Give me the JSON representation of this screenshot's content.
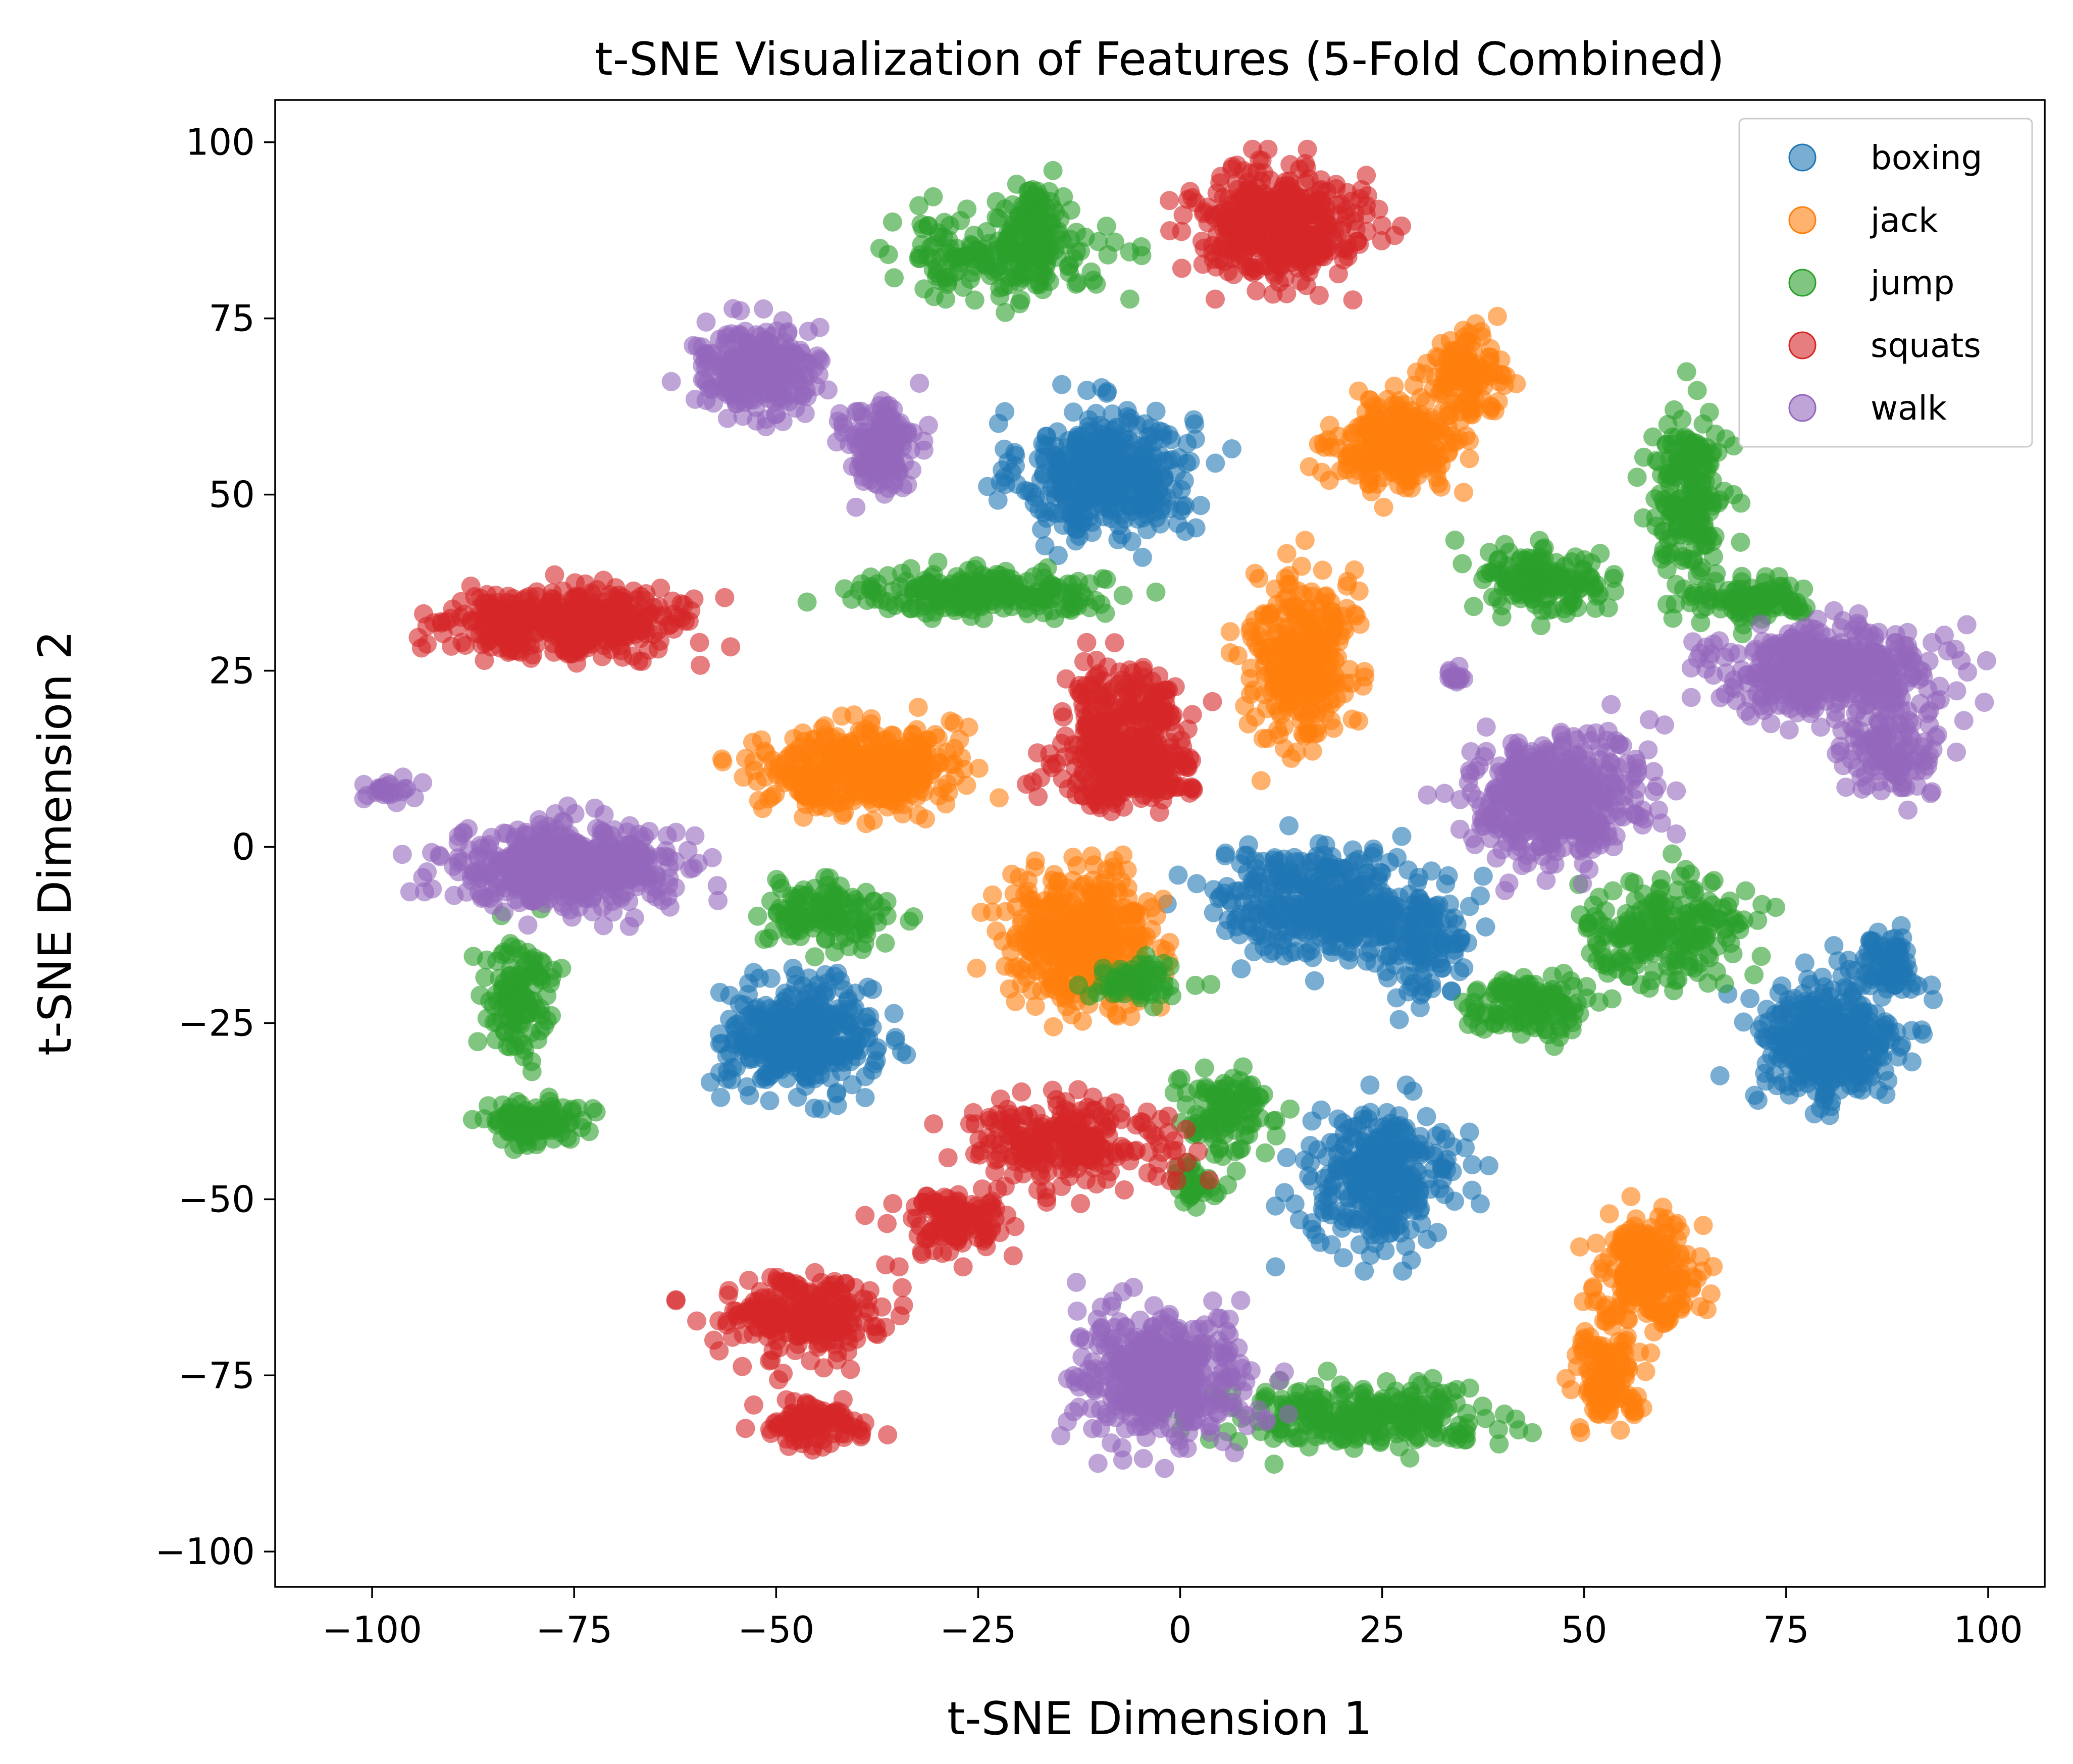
{
  "chart_data": {
    "type": "scatter",
    "title": "t-SNE Visualization of Features (5-Fold Combined)",
    "xlabel": "t-SNE Dimension 1",
    "ylabel": "t-SNE Dimension 2",
    "xlim": [
      -112,
      107
    ],
    "ylim": [
      -105,
      106
    ],
    "xticks": [
      -100,
      -75,
      -50,
      -25,
      0,
      25,
      50,
      75,
      100
    ],
    "yticks": [
      -100,
      -75,
      -50,
      -25,
      0,
      25,
      50,
      75,
      100
    ],
    "xtick_labels": [
      "−100",
      "−75",
      "−50",
      "−25",
      "0",
      "25",
      "50",
      "75",
      "100"
    ],
    "ytick_labels": [
      "−100",
      "−75",
      "−50",
      "−25",
      "0",
      "25",
      "50",
      "75",
      "100"
    ],
    "legend_position": "top-right",
    "point_alpha": 0.6,
    "series": [
      {
        "name": "boxing",
        "color": "#1f77b4",
        "clusters": [
          {
            "cx": -9,
            "cy": 53,
            "sx": 7,
            "sy": 6,
            "n": 420
          },
          {
            "cx": 18,
            "cy": -8,
            "sx": 9,
            "sy": 5,
            "n": 380
          },
          {
            "cx": 30,
            "cy": -14,
            "sx": 4,
            "sy": 5,
            "n": 110
          },
          {
            "cx": -47,
            "cy": -27,
            "sx": 6,
            "sy": 5,
            "n": 380
          },
          {
            "cx": 25,
            "cy": -47,
            "sx": 6,
            "sy": 6,
            "n": 320
          },
          {
            "cx": 80,
            "cy": -28,
            "sx": 6,
            "sy": 6,
            "n": 360
          },
          {
            "cx": 87,
            "cy": -17,
            "sx": 3,
            "sy": 3,
            "n": 80
          }
        ]
      },
      {
        "name": "jack",
        "color": "#ff7f0e",
        "clusters": [
          {
            "cx": 27,
            "cy": 57,
            "sx": 5,
            "sy": 4,
            "n": 260
          },
          {
            "cx": 35,
            "cy": 67,
            "sx": 3,
            "sy": 4,
            "n": 130
          },
          {
            "cx": 15,
            "cy": 27,
            "sx": 4,
            "sy": 8,
            "n": 340
          },
          {
            "cx": -40,
            "cy": 11,
            "sx": 8,
            "sy": 4,
            "n": 380
          },
          {
            "cx": -12,
            "cy": -13,
            "sx": 6,
            "sy": 6,
            "n": 420
          },
          {
            "cx": 58,
            "cy": -60,
            "sx": 4,
            "sy": 5,
            "n": 240
          },
          {
            "cx": 53,
            "cy": -75,
            "sx": 3,
            "sy": 4,
            "n": 120
          }
        ]
      },
      {
        "name": "jump",
        "color": "#2ca02c",
        "clusters": [
          {
            "cx": -22,
            "cy": 84,
            "sx": 9,
            "sy": 4,
            "n": 200
          },
          {
            "cx": -18,
            "cy": 90,
            "sx": 2,
            "sy": 3,
            "n": 60
          },
          {
            "cx": -25,
            "cy": 36,
            "sx": 10,
            "sy": 2,
            "n": 220
          },
          {
            "cx": 45,
            "cy": 38,
            "sx": 5,
            "sy": 3,
            "n": 160
          },
          {
            "cx": 63,
            "cy": 48,
            "sx": 3,
            "sy": 9,
            "n": 200
          },
          {
            "cx": 72,
            "cy": 35,
            "sx": 4,
            "sy": 2,
            "n": 80
          },
          {
            "cx": 60,
            "cy": -12,
            "sx": 7,
            "sy": 5,
            "n": 220
          },
          {
            "cx": 43,
            "cy": -23,
            "sx": 5,
            "sy": 3,
            "n": 120
          },
          {
            "cx": -44,
            "cy": -9,
            "sx": 5,
            "sy": 3,
            "n": 130
          },
          {
            "cx": -82,
            "cy": -22,
            "sx": 3,
            "sy": 6,
            "n": 120
          },
          {
            "cx": -80,
            "cy": -39,
            "sx": 4,
            "sy": 2,
            "n": 110
          },
          {
            "cx": 5,
            "cy": -38,
            "sx": 4,
            "sy": 4,
            "n": 100
          },
          {
            "cx": 2,
            "cy": -48,
            "sx": 2,
            "sy": 2,
            "n": 40
          },
          {
            "cx": 22,
            "cy": -81,
            "sx": 11,
            "sy": 3,
            "n": 260
          },
          {
            "cx": -5,
            "cy": -19,
            "sx": 4,
            "sy": 2,
            "n": 60
          }
        ]
      },
      {
        "name": "squats",
        "color": "#d62728",
        "clusters": [
          {
            "cx": 12,
            "cy": 88,
            "sx": 7,
            "sy": 5,
            "n": 420
          },
          {
            "cx": -76,
            "cy": 32,
            "sx": 10,
            "sy": 3,
            "n": 420
          },
          {
            "cx": -7,
            "cy": 18,
            "sx": 5,
            "sy": 5,
            "n": 220
          },
          {
            "cx": -7,
            "cy": 10,
            "sx": 6,
            "sy": 3,
            "n": 160
          },
          {
            "cx": -14,
            "cy": -42,
            "sx": 8,
            "sy": 4,
            "n": 240
          },
          {
            "cx": -28,
            "cy": -53,
            "sx": 5,
            "sy": 3,
            "n": 120
          },
          {
            "cx": -47,
            "cy": -67,
            "sx": 7,
            "sy": 4,
            "n": 240
          },
          {
            "cx": -45,
            "cy": -82,
            "sx": 4,
            "sy": 2,
            "n": 90
          }
        ]
      },
      {
        "name": "walk",
        "color": "#9467bd",
        "clusters": [
          {
            "cx": -53,
            "cy": 68,
            "sx": 5,
            "sy": 4,
            "n": 280
          },
          {
            "cx": -37,
            "cy": 57,
            "sx": 3,
            "sy": 4,
            "n": 160
          },
          {
            "cx": -77,
            "cy": -3,
            "sx": 9,
            "sy": 4,
            "n": 520
          },
          {
            "cx": 46,
            "cy": 7,
            "sx": 7,
            "sy": 6,
            "n": 480
          },
          {
            "cx": 80,
            "cy": 25,
            "sx": 9,
            "sy": 4,
            "n": 460
          },
          {
            "cx": 88,
            "cy": 13,
            "sx": 4,
            "sy": 4,
            "n": 120
          },
          {
            "cx": -2,
            "cy": -75,
            "sx": 7,
            "sy": 6,
            "n": 440
          },
          {
            "cx": -98,
            "cy": 8,
            "sx": 2,
            "sy": 1.2,
            "n": 25
          },
          {
            "cx": 34,
            "cy": 24,
            "sx": 1,
            "sy": 0.8,
            "n": 15
          }
        ]
      }
    ]
  }
}
